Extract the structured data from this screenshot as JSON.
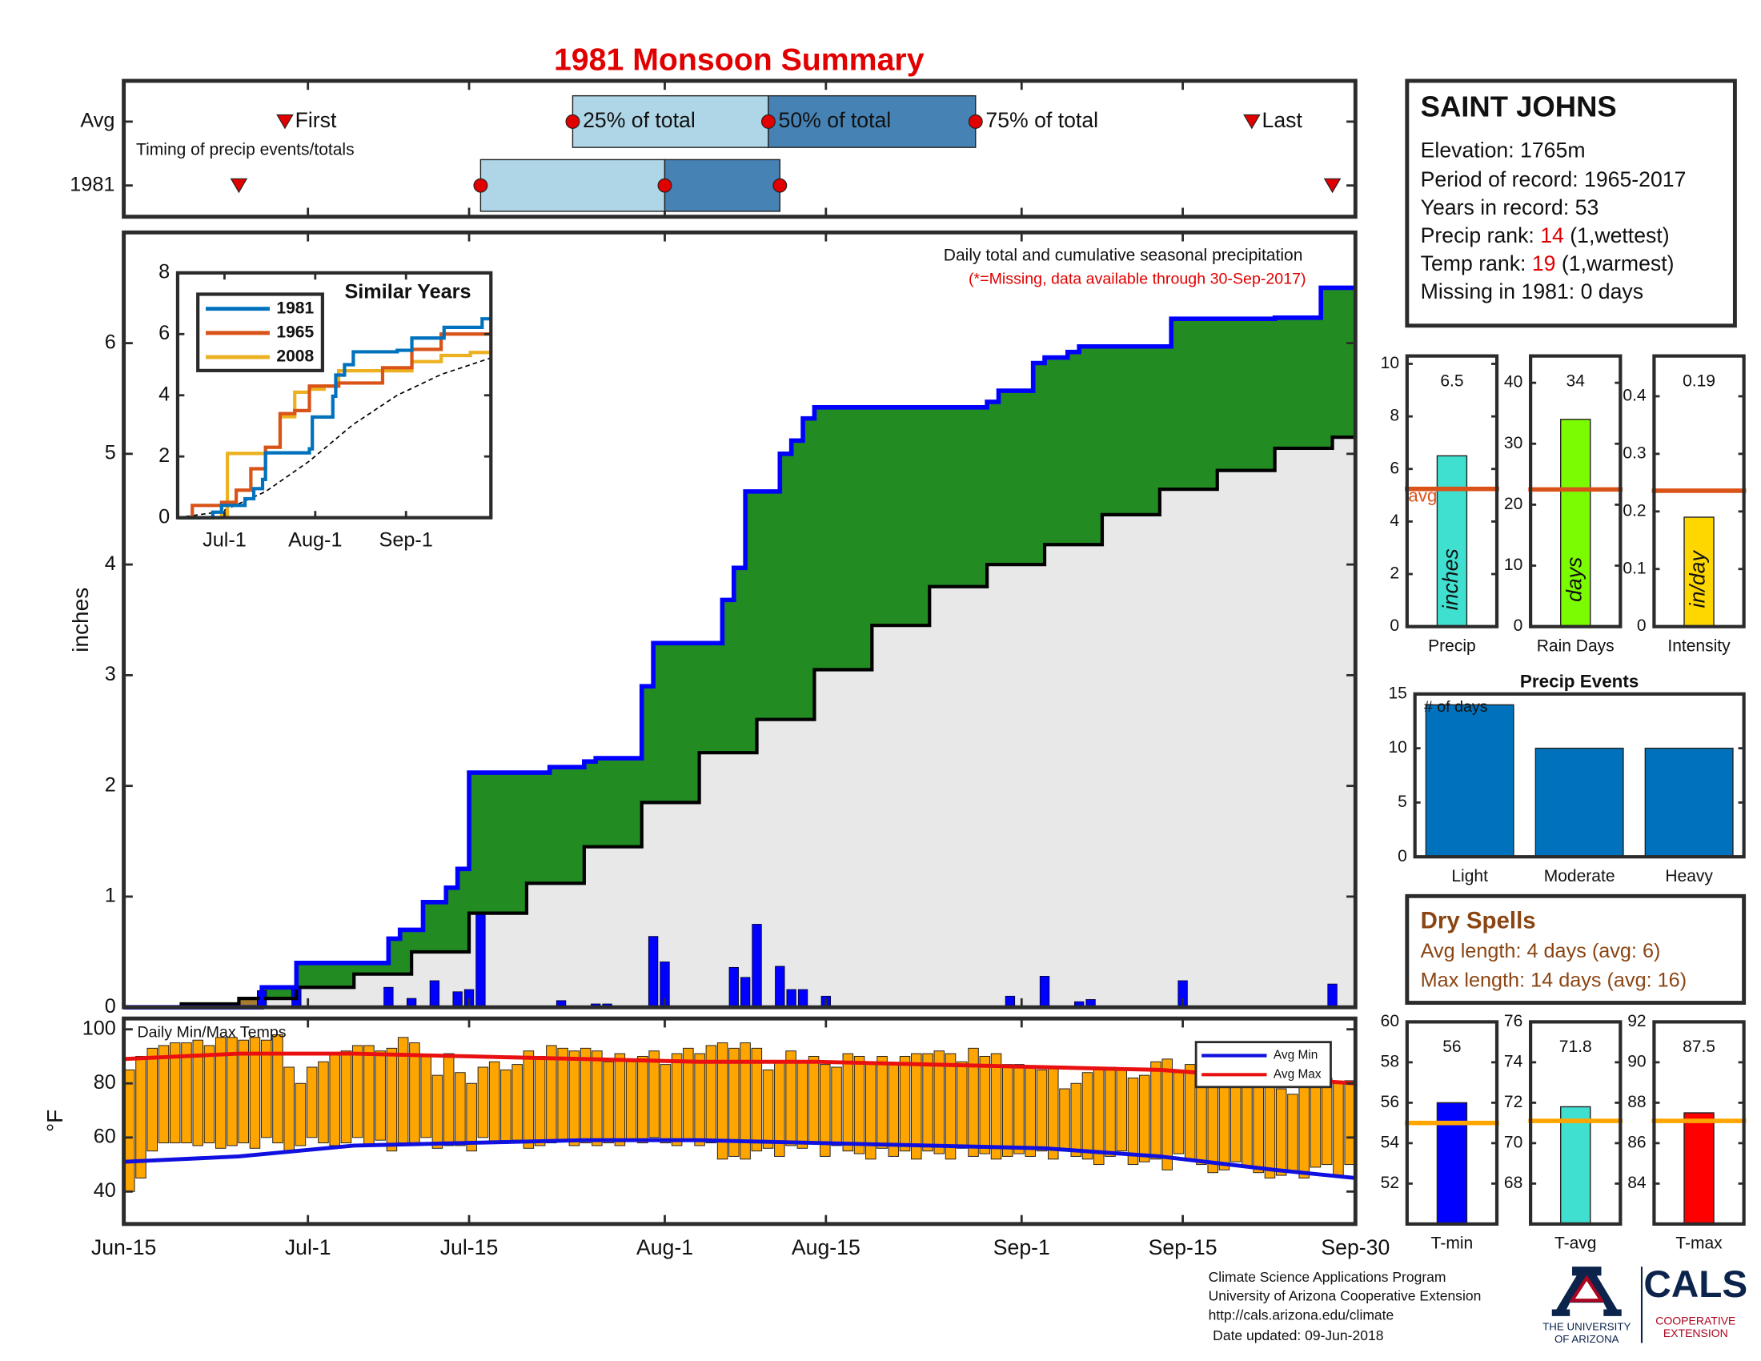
{
  "title": "1981 Monsoon Summary",
  "chart_data": [
    {
      "type": "timing",
      "annotation": "Timing of precip events/totals",
      "categories": [
        "Avg",
        "1981"
      ],
      "xlim": [
        0,
        107
      ],
      "xticks": [
        0,
        16,
        30,
        47,
        61,
        78,
        92,
        107
      ],
      "box_colors": [
        "#aed6e6",
        "#4682b4"
      ],
      "series": [
        {
          "name": "First",
          "marker": "triangle",
          "color": "#e00000",
          "values": [
            14,
            10
          ]
        },
        {
          "name": "25% of total",
          "marker": "circle",
          "color": "#e00000",
          "values": [
            39,
            31
          ]
        },
        {
          "name": "50% of total",
          "marker": "circle",
          "color": "#e00000",
          "values": [
            56,
            47
          ]
        },
        {
          "name": "75% of total",
          "marker": "circle",
          "color": "#e00000",
          "values": [
            74,
            57
          ]
        },
        {
          "name": "Last",
          "marker": "triangle",
          "color": "#e00000",
          "values": [
            98,
            105
          ]
        }
      ]
    },
    {
      "type": "precip",
      "title": "Daily total and cumulative seasonal precipitation",
      "subtitle": "(*=Missing, data available through 30-Sep-2017)",
      "ylabel": "inches",
      "xlim": [
        0,
        107
      ],
      "xticks": [
        0,
        16,
        30,
        47,
        61,
        78,
        92,
        107
      ],
      "ylim": [
        0,
        7
      ],
      "yticks": [
        0,
        1,
        2,
        3,
        4,
        5,
        6
      ],
      "colors": {
        "avg_area": "#e8e8e8",
        "above_avg": "#228b22",
        "below_avg": "#a67c2e",
        "daily": "#0000ff",
        "cumulative": "#0000ff",
        "avg_line": "#000000"
      },
      "daily": {
        "x": [
          12,
          15,
          23,
          25,
          27,
          29,
          30,
          31,
          38,
          41,
          42,
          46,
          47,
          53,
          54,
          55,
          57,
          58,
          59,
          61,
          77,
          80,
          83,
          84,
          92,
          105
        ],
        "values": [
          0.15,
          0.18,
          0.18,
          0.08,
          0.24,
          0.14,
          0.16,
          0.85,
          0.06,
          0.03,
          0.03,
          0.64,
          0.41,
          0.36,
          0.27,
          0.75,
          0.37,
          0.16,
          0.16,
          0.1,
          0.1,
          0.28,
          0.05,
          0.07,
          0.24,
          0.21
        ]
      },
      "cumulative": {
        "x": [
          0,
          12,
          15,
          23,
          24,
          26,
          28,
          29,
          30,
          37,
          40,
          41,
          45,
          46,
          52,
          53,
          54,
          57,
          58,
          59,
          60,
          75,
          76,
          79,
          80,
          82,
          83,
          91,
          100,
          104,
          107
        ],
        "values": [
          0,
          0.18,
          0.4,
          0.62,
          0.7,
          0.95,
          1.08,
          1.25,
          2.12,
          2.17,
          2.22,
          2.25,
          2.9,
          3.29,
          3.68,
          3.97,
          4.66,
          5.0,
          5.12,
          5.32,
          5.42,
          5.47,
          5.57,
          5.82,
          5.87,
          5.92,
          5.97,
          6.22,
          6.23,
          6.5,
          6.5
        ]
      },
      "avg_cumulative": {
        "x": [
          0,
          5,
          10,
          15,
          20,
          25,
          30,
          35,
          40,
          45,
          50,
          55,
          60,
          65,
          70,
          75,
          80,
          85,
          90,
          95,
          100,
          105,
          107
        ],
        "values": [
          0,
          0.03,
          0.08,
          0.18,
          0.3,
          0.5,
          0.85,
          1.12,
          1.45,
          1.85,
          2.3,
          2.6,
          3.05,
          3.45,
          3.8,
          4.0,
          4.18,
          4.45,
          4.68,
          4.85,
          5.05,
          5.15,
          5.22
        ]
      }
    },
    {
      "type": "line",
      "title": "Similar Years",
      "xlim": [
        0,
        107
      ],
      "xticks": [
        {
          "value": 16,
          "label": "Jul-1"
        },
        {
          "value": 47,
          "label": "Aug-1"
        },
        {
          "value": 78,
          "label": "Sep-1"
        }
      ],
      "ylim": [
        0,
        8
      ],
      "yticks": [
        0,
        2,
        4,
        6,
        8
      ],
      "series": [
        {
          "name": "1981",
          "color": "#0072bd",
          "x": [
            0,
            12,
            15,
            23,
            26,
            29,
            30,
            45,
            46,
            53,
            54,
            57,
            60,
            75,
            80,
            91,
            104,
            107
          ],
          "values": [
            0,
            0.18,
            0.4,
            0.62,
            0.95,
            1.25,
            2.12,
            2.25,
            3.29,
            3.97,
            4.66,
            5.0,
            5.42,
            5.47,
            5.87,
            6.22,
            6.5,
            6.5
          ]
        },
        {
          "name": "1965",
          "color": "#d95319",
          "x": [
            0,
            5,
            15,
            20,
            25,
            30,
            35,
            40,
            45,
            50,
            55,
            60,
            70,
            80,
            90,
            100,
            107
          ],
          "values": [
            0,
            0.4,
            0.5,
            0.9,
            1.6,
            2.3,
            3.4,
            3.5,
            4.3,
            4.3,
            4.4,
            4.4,
            4.9,
            5.5,
            6.0,
            6.0,
            6.0
          ]
        },
        {
          "name": "2008",
          "color": "#edb120",
          "x": [
            0,
            10,
            15,
            17,
            25,
            30,
            35,
            40,
            45,
            50,
            55,
            70,
            80,
            90,
            100,
            107
          ],
          "values": [
            0,
            0,
            0.1,
            2.1,
            2.1,
            2.3,
            3.3,
            4.1,
            4.2,
            4.3,
            4.8,
            4.8,
            5.1,
            5.3,
            5.4,
            5.4
          ]
        }
      ],
      "avg": {
        "color": "#000000",
        "x": [
          0,
          15,
          30,
          45,
          60,
          75,
          90,
          107
        ],
        "values": [
          0,
          0.2,
          0.85,
          1.85,
          3.05,
          4.0,
          4.68,
          5.22
        ]
      }
    },
    {
      "type": "minmax",
      "title": "Daily Min/Max Temps",
      "ylabel": "°F",
      "xlim": [
        0,
        107
      ],
      "xticks": [
        {
          "value": 0,
          "label": "Jun-15"
        },
        {
          "value": 16,
          "label": "Jul-1"
        },
        {
          "value": 30,
          "label": "Jul-15"
        },
        {
          "value": 47,
          "label": "Aug-1"
        },
        {
          "value": 61,
          "label": "Aug-15"
        },
        {
          "value": 78,
          "label": "Sep-1"
        },
        {
          "value": 92,
          "label": "Sep-15"
        },
        {
          "value": 107,
          "label": "Sep-30"
        }
      ],
      "ylim": [
        28,
        104
      ],
      "yticks": [
        40,
        60,
        80,
        100
      ],
      "bar_color": "#ffa500",
      "min": [
        40,
        45,
        55,
        58,
        58,
        58,
        57,
        58,
        56,
        57,
        58,
        56,
        60,
        58,
        55,
        57,
        60,
        58,
        57,
        58,
        60,
        57,
        59,
        55,
        58,
        58,
        60,
        56,
        57,
        57,
        55,
        60,
        58,
        58,
        59,
        56,
        57,
        58,
        59,
        57,
        58,
        57,
        58,
        57,
        59,
        58,
        60,
        58,
        57,
        59,
        57,
        58,
        52,
        53,
        52,
        55,
        56,
        53,
        57,
        56,
        58,
        53,
        57,
        55,
        54,
        52,
        56,
        53,
        55,
        52,
        55,
        54,
        52,
        56,
        53,
        54,
        52,
        53,
        54,
        53,
        55,
        52,
        55,
        53,
        52,
        50,
        53,
        55,
        50,
        51,
        52,
        48,
        54,
        52,
        50,
        47,
        48,
        51,
        49,
        47,
        45,
        46,
        47,
        45,
        49,
        50,
        46,
        50
      ],
      "max": [
        85,
        90,
        93,
        94,
        95,
        95,
        96,
        94,
        97,
        97,
        96,
        97,
        96,
        98,
        86,
        80,
        86,
        88,
        91,
        92,
        94,
        94,
        92,
        93,
        97,
        95,
        90,
        83,
        91,
        84,
        80,
        86,
        88,
        85,
        87,
        92,
        90,
        94,
        93,
        92,
        93,
        92,
        88,
        91,
        88,
        90,
        92,
        87,
        91,
        93,
        91,
        94,
        95,
        93,
        95,
        93,
        85,
        88,
        92,
        88,
        90,
        87,
        86,
        91,
        90,
        88,
        90,
        87,
        90,
        91,
        91,
        92,
        91,
        88,
        93,
        90,
        91,
        87,
        87,
        86,
        85,
        86,
        78,
        80,
        84,
        86,
        86,
        85,
        82,
        83,
        88,
        89,
        84,
        87,
        84,
        82,
        80,
        85,
        83,
        88,
        80,
        78,
        76,
        82,
        80,
        82,
        80,
        81
      ],
      "series": [
        {
          "name": "Avg Min",
          "color": "#1010e0",
          "x": [
            0,
            10,
            15,
            20,
            30,
            40,
            50,
            60,
            70,
            80,
            90,
            100,
            107
          ],
          "values": [
            51,
            53,
            55,
            57,
            58,
            59,
            59,
            58,
            57,
            56,
            53,
            48,
            45
          ]
        },
        {
          "name": "Avg Max",
          "color": "#e81010",
          "x": [
            0,
            10,
            20,
            30,
            40,
            50,
            60,
            70,
            80,
            90,
            100,
            107
          ],
          "values": [
            89,
            91,
            91,
            90,
            89,
            88,
            88,
            87,
            86,
            85,
            82,
            80
          ]
        }
      ]
    },
    {
      "type": "summary",
      "categories": [
        "Precip"
      ],
      "values": [
        6.5
      ],
      "unit": "inches",
      "color": "#40e0d0",
      "ylim": [
        0,
        10.3
      ],
      "yticks": [
        0,
        2,
        4,
        6,
        8,
        10
      ],
      "avg": 5.24,
      "avg_label": "avg",
      "avg_color": "#d95319"
    },
    {
      "type": "summary",
      "categories": [
        "Rain Days"
      ],
      "values": [
        34
      ],
      "unit": "days",
      "color": "#7cfc00",
      "ylim": [
        0,
        44.4
      ],
      "yticks": [
        0,
        10,
        20,
        30,
        40
      ],
      "avg": 22.5,
      "avg_color": "#d95319"
    },
    {
      "type": "summary",
      "categories": [
        "Intensity"
      ],
      "values": [
        0.19
      ],
      "unit": "in/day",
      "color": "#ffd700",
      "ylim": [
        0,
        0.47
      ],
      "yticks": [
        0,
        0.1,
        0.2,
        0.3,
        0.4
      ],
      "avg": 0.236,
      "avg_color": "#d95319"
    },
    {
      "type": "bar",
      "title": "Precip Events",
      "ylabel": "# of days",
      "categories": [
        "Light",
        "Moderate",
        "Heavy"
      ],
      "values": [
        14,
        10,
        10
      ],
      "color": "#0072bd",
      "ylim": [
        0,
        15
      ],
      "yticks": [
        0,
        5,
        10,
        15
      ]
    },
    {
      "type": "summary",
      "categories": [
        "T-min"
      ],
      "values": [
        56
      ],
      "color": "#0000ff",
      "ylim": [
        50,
        60
      ],
      "yticks": [
        52,
        54,
        56,
        58,
        60
      ],
      "avg": 55,
      "avg_color": "#ffa500"
    },
    {
      "type": "summary",
      "categories": [
        "T-avg"
      ],
      "values": [
        71.8
      ],
      "color": "#40e0d0",
      "ylim": [
        66,
        76
      ],
      "yticks": [
        68,
        70,
        72,
        74,
        76
      ],
      "avg": 71.1,
      "avg_color": "#ffa500"
    },
    {
      "type": "summary",
      "categories": [
        "T-max"
      ],
      "values": [
        87.5
      ],
      "color": "#ff0000",
      "ylim": [
        82,
        92
      ],
      "yticks": [
        84,
        86,
        88,
        90,
        92
      ],
      "avg": 87.1,
      "avg_color": "#ffa500"
    }
  ],
  "station": {
    "name": "SAINT JOHNS",
    "elevation": "Elevation: 1765m",
    "period": "Period of record: 1965-2017",
    "years": "Years in record: 53",
    "precip_rank": {
      "label": "Precip rank:",
      "value": 14,
      "note": "(1,wettest)"
    },
    "temp_rank": {
      "label": "Temp rank:",
      "value": 19,
      "note": "(1,warmest)"
    },
    "missing": "Missing in 1981: 0 days"
  },
  "dry_spells": {
    "title": "Dry Spells",
    "avg_length": "Avg length: 4 days (avg: 6)",
    "max_length": "Max length: 14 days (avg: 16)"
  },
  "footer": [
    "Climate Science Applications Program",
    "University of Arizona Cooperative Extension",
    "http://cals.arizona.edu/climate",
    "Date updated: 09-Jun-2018"
  ],
  "logos": {
    "university": [
      "THE UNIVERSITY",
      "OF ARIZONA"
    ],
    "cals": "CALS",
    "cals_sub": [
      "COOPERATIVE",
      "EXTENSION"
    ]
  }
}
